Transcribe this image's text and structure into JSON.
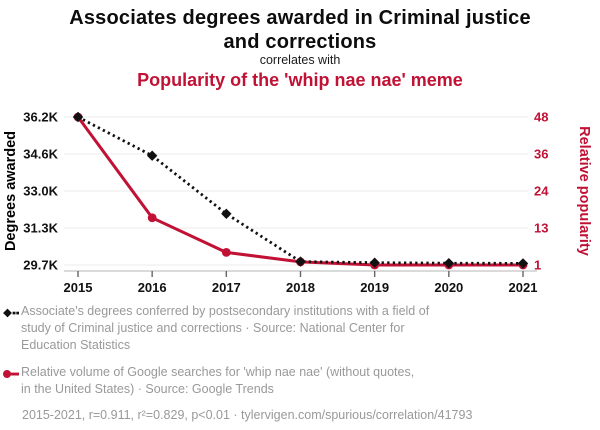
{
  "chart_data": {
    "type": "line",
    "title": "Associates degrees awarded in Criminal justice and corrections",
    "connector": "correlates with",
    "subtitle": "Popularity of the 'whip nae nae' meme",
    "x": [
      2015,
      2016,
      2017,
      2018,
      2019,
      2020,
      2021
    ],
    "x_ticks": [
      "2015",
      "2016",
      "2017",
      "2018",
      "2019",
      "2020",
      "2021"
    ],
    "series": [
      {
        "name": "Associate's degrees in Criminal justice and corrections",
        "axis": "left",
        "color": "#111111",
        "line_style": "dotted",
        "marker": "diamond",
        "values": [
          36200,
          34500,
          31950,
          29850,
          29800,
          29780,
          29770
        ],
        "legend": "Associate's degrees conferred by postsecondary institutions with a field of\nstudy of Criminal justice and corrections · Source: National Center for\nEducation Statistics"
      },
      {
        "name": "Google searches for 'whip nae nae'",
        "axis": "right",
        "color": "#c11235",
        "line_style": "solid",
        "marker": "circle",
        "values": [
          48,
          16,
          5,
          2,
          1,
          1,
          1
        ],
        "legend": "Relative volume of Google searches for 'whip nae nae' (without quotes,\nin the United States) · Source: Google Trends"
      }
    ],
    "left_axis": {
      "label": "Degrees awarded",
      "min": 29700,
      "max": 36200,
      "ticks": [
        "36.2K",
        "34.6K",
        "33.0K",
        "31.3K",
        "29.7K"
      ],
      "color": "#111111"
    },
    "right_axis": {
      "label": "Relative popularity",
      "min": 1,
      "max": 48,
      "ticks": [
        "48",
        "36",
        "24",
        "13",
        "1"
      ],
      "color": "#c11235"
    },
    "grid": "horizontal",
    "legend_position": "bottom"
  },
  "footer": {
    "text": "2015-2021, r=0.911, r²=0.829, p<0.01 · tylervigen.com/spurious/correlation/41793"
  },
  "colors": {
    "accent_red": "#c11235",
    "legend_gray": "#999999",
    "grid_line": "#ebebeb",
    "axis_line": "#b4b4b4"
  }
}
